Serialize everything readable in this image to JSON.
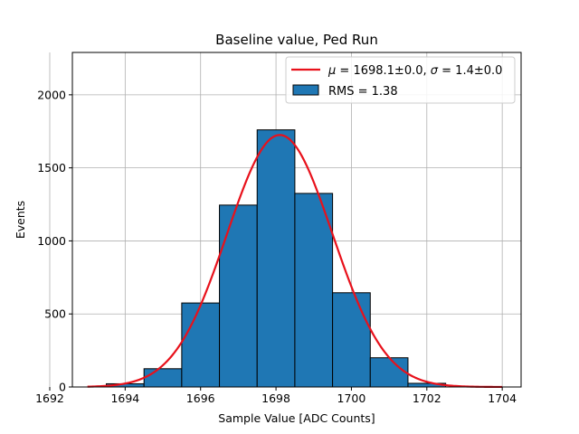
{
  "chart_data": {
    "type": "bar",
    "title": "Baseline value, Ped Run",
    "xlabel": "Sample Value [ADC Counts]",
    "ylabel": "Events",
    "xlim": [
      1692.6,
      1704.5
    ],
    "ylim": [
      0,
      2290
    ],
    "xticks": [
      "1692",
      "1694",
      "1696",
      "1698",
      "1700",
      "1702",
      "1704"
    ],
    "yticks": [
      "0",
      "500",
      "1000",
      "1500",
      "2000"
    ],
    "grid": true,
    "legend_position": "top-right",
    "bins": [
      {
        "left": 1693.5,
        "right": 1694.5,
        "value": 22
      },
      {
        "left": 1694.5,
        "right": 1695.5,
        "value": 125
      },
      {
        "left": 1695.5,
        "right": 1696.5,
        "value": 575
      },
      {
        "left": 1696.5,
        "right": 1697.5,
        "value": 1245
      },
      {
        "left": 1697.5,
        "right": 1698.5,
        "value": 1760
      },
      {
        "left": 1698.5,
        "right": 1699.5,
        "value": 1325
      },
      {
        "left": 1699.5,
        "right": 1700.5,
        "value": 645
      },
      {
        "left": 1700.5,
        "right": 1701.5,
        "value": 200
      },
      {
        "left": 1701.5,
        "right": 1702.5,
        "value": 25
      }
    ],
    "fit": {
      "mu": 1698.1,
      "sigma": 1.4,
      "amplitude": 1725,
      "x_range": [
        1693,
        1704
      ]
    },
    "series": [
      {
        "name": "$\\mu = 1698.1\\pm0.0$, $\\sigma = 1.4\\pm0.0$",
        "type": "line",
        "color": "#e8111b"
      },
      {
        "name": "RMS = 1.38",
        "type": "bar",
        "color": "#1f77b4"
      }
    ],
    "legend": {
      "fit_label_prefix_mu": "μ",
      "fit_label_mid": " = 1698.1±0.0, ",
      "fit_label_prefix_sigma": "σ",
      "fit_label_end": " = 1.4±0.0",
      "hist_label": "RMS = 1.38"
    }
  }
}
